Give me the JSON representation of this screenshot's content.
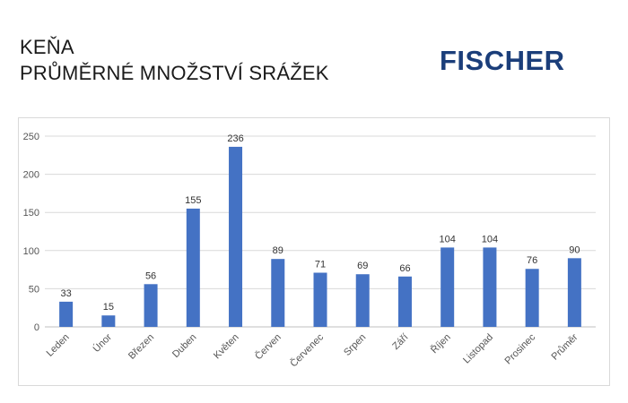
{
  "header": {
    "title_line1": "KEŇA",
    "title_line2": "PRŮMĚRNÉ MNOŽSTVÍ SRÁŽEK"
  },
  "brand": {
    "logo_text": "FISCHER",
    "logo_color": "#1b3e7a"
  },
  "chart_data": {
    "type": "bar",
    "title": "",
    "xlabel": "",
    "ylabel": "",
    "categories": [
      "Leden",
      "Únor",
      "Březen",
      "Duben",
      "Květen",
      "Červen",
      "Červenec",
      "Srpen",
      "Září",
      "Říjen",
      "Listopad",
      "Prosinec",
      "Průměr"
    ],
    "values": [
      33,
      15,
      56,
      155,
      236,
      89,
      71,
      69,
      66,
      104,
      104,
      76,
      90
    ],
    "ylim": [
      0,
      250
    ],
    "yticks": [
      0,
      50,
      100,
      150,
      200,
      250
    ],
    "grid": true,
    "data_labels": true,
    "bar_color": "#4472c4",
    "legend": "none"
  }
}
